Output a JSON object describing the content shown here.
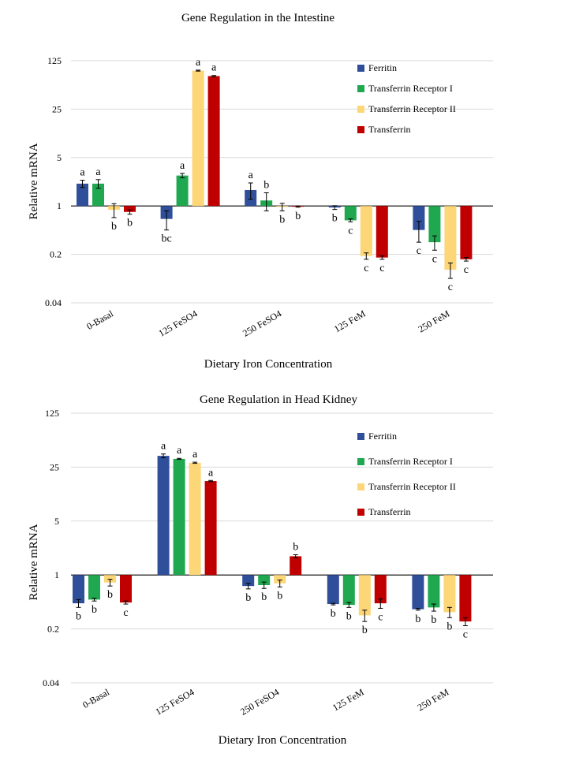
{
  "chart_data": [
    {
      "type": "bar",
      "title": "Gene Regulation in the Intestine",
      "xlabel": "Dietary Iron Concentration",
      "ylabel": "Relative mRNA",
      "yscale": "log",
      "ylim": [
        0.04,
        125
      ],
      "baseline": 1,
      "yticks": [
        {
          "value": 125,
          "label": "125"
        },
        {
          "value": 25,
          "label": "25"
        },
        {
          "value": 5,
          "label": "5"
        },
        {
          "value": 1,
          "label": "1"
        },
        {
          "value": 0.2,
          "label": "0.2"
        },
        {
          "value": 0.04,
          "label": "0.04"
        }
      ],
      "categories": [
        "0-Basal",
        "125 FeSO4",
        "250 FeSO4",
        "125 FeM",
        "250 FeM"
      ],
      "legend_position": "top-right",
      "series": [
        {
          "name": "Ferritin",
          "color": "#2f4f9a",
          "values": [
            2.1,
            0.65,
            1.7,
            0.95,
            0.45
          ],
          "errors": [
            0.25,
            0.2,
            0.45,
            0.06,
            0.15
          ],
          "letters": [
            "a",
            "bc",
            "a",
            "b",
            "c"
          ]
        },
        {
          "name": "Transferrin Receptor I",
          "color": "#1fa84f",
          "values": [
            2.1,
            2.75,
            1.2,
            0.62,
            0.3
          ],
          "errors": [
            0.3,
            0.2,
            0.35,
            0.03,
            0.07
          ],
          "letters": [
            "a",
            "a",
            "b",
            "c",
            "c"
          ]
        },
        {
          "name": "Transferrin Receptor II",
          "color": "#fcd677",
          "values": [
            0.88,
            90,
            0.97,
            0.19,
            0.12
          ],
          "errors": [
            0.2,
            1.5,
            0.12,
            0.02,
            0.03
          ],
          "letters": [
            "b",
            "a",
            "b",
            "c",
            "c"
          ]
        },
        {
          "name": "Transferrin",
          "color": "#c00000",
          "values": [
            0.82,
            75,
            0.98,
            0.18,
            0.17
          ],
          "errors": [
            0.06,
            1.5,
            0.02,
            0.01,
            0.01
          ],
          "letters": [
            "b",
            "a",
            "b",
            "c",
            "c"
          ]
        }
      ]
    },
    {
      "type": "bar",
      "title": "Gene Regulation in Head Kidney",
      "xlabel": "Dietary Iron Concentration",
      "ylabel": "Relative mRNA",
      "yscale": "log",
      "ylim": [
        0.04,
        125
      ],
      "baseline": 1,
      "yticks": [
        {
          "value": 125,
          "label": "125"
        },
        {
          "value": 25,
          "label": "25"
        },
        {
          "value": 5,
          "label": "5"
        },
        {
          "value": 1,
          "label": "1"
        },
        {
          "value": 0.2,
          "label": "0.2"
        },
        {
          "value": 0.04,
          "label": "0.04"
        }
      ],
      "categories": [
        "0-Basal",
        "125 FeSO4",
        "250 FeSO4",
        "125 FeM",
        "250 FeM"
      ],
      "legend_position": "top-right",
      "series": [
        {
          "name": "Ferritin",
          "color": "#2f4f9a",
          "values": [
            0.43,
            35,
            0.72,
            0.42,
            0.36
          ],
          "errors": [
            0.05,
            2,
            0.06,
            0.01,
            0.01
          ],
          "letters": [
            "b",
            "a",
            "b",
            "b",
            "b"
          ]
        },
        {
          "name": "Transferrin Receptor I",
          "color": "#1fa84f",
          "values": [
            0.48,
            32,
            0.74,
            0.41,
            0.38
          ],
          "errors": [
            0.02,
            0.5,
            0.07,
            0.03,
            0.04
          ],
          "letters": [
            "b",
            "a",
            "b",
            "b",
            "b"
          ]
        },
        {
          "name": "Transferrin Receptor II",
          "color": "#fcd677",
          "values": [
            0.8,
            28.5,
            0.78,
            0.3,
            0.33
          ],
          "errors": [
            0.08,
            0.5,
            0.08,
            0.05,
            0.05
          ],
          "letters": [
            "b",
            "a",
            "b",
            "b",
            "b"
          ]
        },
        {
          "name": "Transferrin",
          "color": "#c00000",
          "values": [
            0.44,
            16.5,
            1.75,
            0.43,
            0.25
          ],
          "errors": [
            0.02,
            0.3,
            0.08,
            0.06,
            0.03
          ],
          "letters": [
            "c",
            "a",
            "b",
            "c",
            "c"
          ]
        }
      ]
    }
  ]
}
